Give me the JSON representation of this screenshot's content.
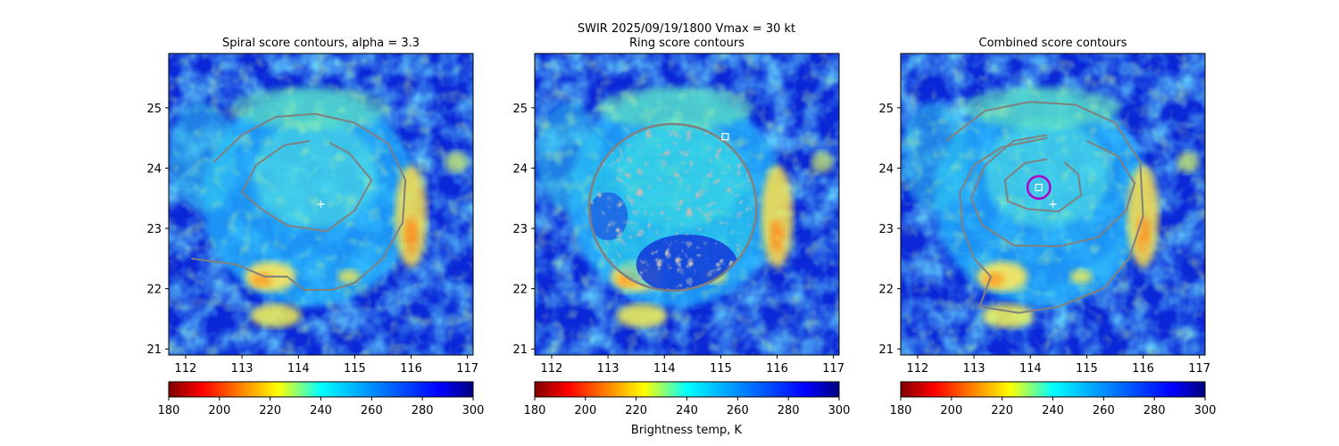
{
  "figure": {
    "suptitle_line1": "SWIR  2025/09/19/1800    Vmax = 30 kt",
    "colorbar_label": "Brightness temp, K"
  },
  "chart_data": [
    {
      "type": "heatmap",
      "title": "Spiral score contours, alpha =  3.3",
      "xlim": [
        111.7,
        117.1
      ],
      "ylim": [
        20.9,
        25.9
      ],
      "x_ticks": [
        "112",
        "113",
        "114",
        "115",
        "116",
        "117"
      ],
      "y_ticks": [
        "21",
        "22",
        "23",
        "24",
        "25"
      ],
      "contour_color": "#808080",
      "contours": [
        {
          "level": "outer",
          "points": [
            [
              112.5,
              24.1
            ],
            [
              113.0,
              24.55
            ],
            [
              113.6,
              24.85
            ],
            [
              114.3,
              24.9
            ],
            [
              115.0,
              24.75
            ],
            [
              115.6,
              24.4
            ],
            [
              115.9,
              23.8
            ],
            [
              115.85,
              23.1
            ],
            [
              115.5,
              22.5
            ],
            [
              115.0,
              22.1
            ],
            [
              114.6,
              21.98
            ],
            [
              114.1,
              21.98
            ],
            [
              113.8,
              22.2
            ],
            [
              113.4,
              22.2
            ],
            [
              112.9,
              22.4
            ],
            [
              112.5,
              22.45
            ],
            [
              112.1,
              22.5
            ]
          ]
        },
        {
          "level": "inner",
          "points": [
            [
              114.2,
              24.45
            ],
            [
              113.75,
              24.38
            ],
            [
              113.25,
              24.05
            ],
            [
              113.0,
              23.6
            ],
            [
              113.3,
              23.35
            ],
            [
              113.8,
              23.05
            ],
            [
              114.5,
              22.95
            ],
            [
              115.0,
              23.3
            ],
            [
              115.3,
              23.8
            ],
            [
              114.9,
              24.25
            ],
            [
              114.55,
              24.42
            ]
          ]
        }
      ],
      "markers": [
        {
          "symbol": "plus",
          "x": 114.4,
          "y": 23.4,
          "color": "#ffffff"
        }
      ]
    },
    {
      "type": "heatmap",
      "title": "Ring score contours",
      "xlim": [
        111.7,
        117.1
      ],
      "ylim": [
        20.9,
        25.9
      ],
      "x_ticks": [
        "112",
        "113",
        "114",
        "115",
        "116",
        "117"
      ],
      "y_ticks": [
        "21",
        "22",
        "23",
        "24",
        "25"
      ],
      "contour_color": "#808080",
      "ring_region": {
        "center": [
          114.15,
          23.35
        ],
        "radius_lon": 1.5,
        "radius_lat": 1.4
      },
      "markers": [
        {
          "symbol": "square",
          "x": 115.08,
          "y": 24.52,
          "color": "#ffffff"
        }
      ]
    },
    {
      "type": "heatmap",
      "title": "Combined score contours",
      "xlim": [
        111.7,
        117.1
      ],
      "ylim": [
        20.9,
        25.9
      ],
      "x_ticks": [
        "112",
        "113",
        "114",
        "115",
        "116",
        "117"
      ],
      "y_ticks": [
        "21",
        "22",
        "23",
        "24",
        "25"
      ],
      "contour_color": "#808080",
      "contours": [
        {
          "level": "outer",
          "points": [
            [
              112.5,
              24.45
            ],
            [
              113.2,
              24.95
            ],
            [
              114.0,
              25.1
            ],
            [
              114.8,
              25.05
            ],
            [
              115.5,
              24.75
            ],
            [
              115.95,
              24.1
            ],
            [
              116.0,
              23.2
            ],
            [
              115.75,
              22.5
            ],
            [
              115.3,
              22.0
            ],
            [
              114.5,
              21.7
            ],
            [
              113.8,
              21.6
            ],
            [
              113.1,
              21.7
            ],
            [
              113.3,
              22.2
            ],
            [
              113.0,
              22.5
            ],
            [
              112.8,
              23.0
            ],
            [
              112.75,
              23.6
            ],
            [
              113.0,
              24.05
            ],
            [
              113.5,
              24.35
            ],
            [
              114.3,
              24.5
            ]
          ]
        },
        {
          "level": "middle",
          "points": [
            [
              114.3,
              24.55
            ],
            [
              113.7,
              24.45
            ],
            [
              113.2,
              24.05
            ],
            [
              112.95,
              23.5
            ],
            [
              113.15,
              23.05
            ],
            [
              113.7,
              22.72
            ],
            [
              114.5,
              22.7
            ],
            [
              115.2,
              22.85
            ],
            [
              115.7,
              23.3
            ],
            [
              115.85,
              23.75
            ],
            [
              115.55,
              24.2
            ],
            [
              115.0,
              24.45
            ]
          ]
        },
        {
          "level": "inner",
          "points": [
            [
              114.3,
              24.15
            ],
            [
              113.9,
              24.08
            ],
            [
              113.55,
              23.8
            ],
            [
              113.6,
              23.45
            ],
            [
              113.95,
              23.32
            ],
            [
              114.5,
              23.28
            ],
            [
              114.9,
              23.55
            ],
            [
              114.85,
              23.9
            ],
            [
              114.6,
              24.1
            ]
          ]
        }
      ],
      "center_ring": {
        "x": 114.15,
        "y": 23.68,
        "radius_lon": 0.2,
        "color": "#b000c8"
      },
      "markers": [
        {
          "symbol": "square",
          "x": 114.15,
          "y": 23.68,
          "color": "#ffffff"
        },
        {
          "symbol": "plus",
          "x": 114.4,
          "y": 23.4,
          "color": "#ffffff"
        }
      ]
    }
  ],
  "colorbar": {
    "colormap": "jet_r",
    "range": [
      180,
      300
    ],
    "ticks": [
      "180",
      "200",
      "220",
      "240",
      "260",
      "280",
      "300"
    ]
  }
}
